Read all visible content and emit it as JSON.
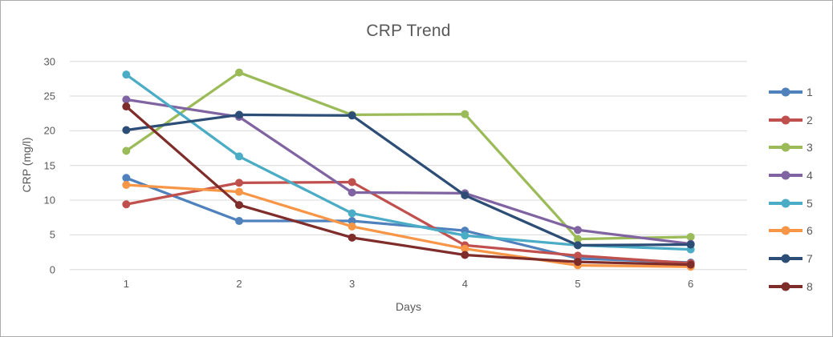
{
  "window": {
    "background": "#ffffff",
    "border_color": "#ababab"
  },
  "chart_data": {
    "type": "line",
    "title": "CRP Trend",
    "xlabel": "Days",
    "ylabel": "CRP (mg/l)",
    "x": [
      1,
      2,
      3,
      4,
      5,
      6
    ],
    "xtick_labels": [
      "1",
      "2",
      "3",
      "4",
      "5",
      "6"
    ],
    "ylim": [
      0,
      30
    ],
    "yticks": [
      0,
      5,
      10,
      15,
      20,
      25,
      30
    ],
    "grid": "horizontal-only",
    "gridline_color": "#d9d9d9",
    "text_color": "#595959",
    "legend_position": "right",
    "series": [
      {
        "name": "1",
        "color": "#4F81BD",
        "values": [
          13.2,
          7.0,
          7.0,
          5.6,
          1.6,
          1.0
        ]
      },
      {
        "name": "2",
        "color": "#C0504D",
        "values": [
          9.4,
          12.5,
          12.6,
          3.5,
          2.0,
          0.9
        ]
      },
      {
        "name": "3",
        "color": "#9BBB59",
        "values": [
          17.1,
          28.4,
          22.3,
          22.4,
          4.4,
          4.7
        ]
      },
      {
        "name": "4",
        "color": "#8064A2",
        "values": [
          24.5,
          22.0,
          11.1,
          11.0,
          5.7,
          3.7
        ]
      },
      {
        "name": "5",
        "color": "#4BACC6",
        "values": [
          28.1,
          16.3,
          8.1,
          4.9,
          3.5,
          2.9
        ]
      },
      {
        "name": "6",
        "color": "#F79646",
        "values": [
          12.2,
          11.2,
          6.2,
          3.0,
          0.6,
          0.4
        ]
      },
      {
        "name": "7",
        "color": "#2C4D75",
        "values": [
          20.1,
          22.3,
          22.2,
          10.7,
          3.5,
          3.6
        ]
      },
      {
        "name": "8",
        "color": "#7F2D2A",
        "values": [
          23.5,
          9.3,
          4.6,
          2.1,
          1.1,
          0.7
        ]
      }
    ]
  }
}
